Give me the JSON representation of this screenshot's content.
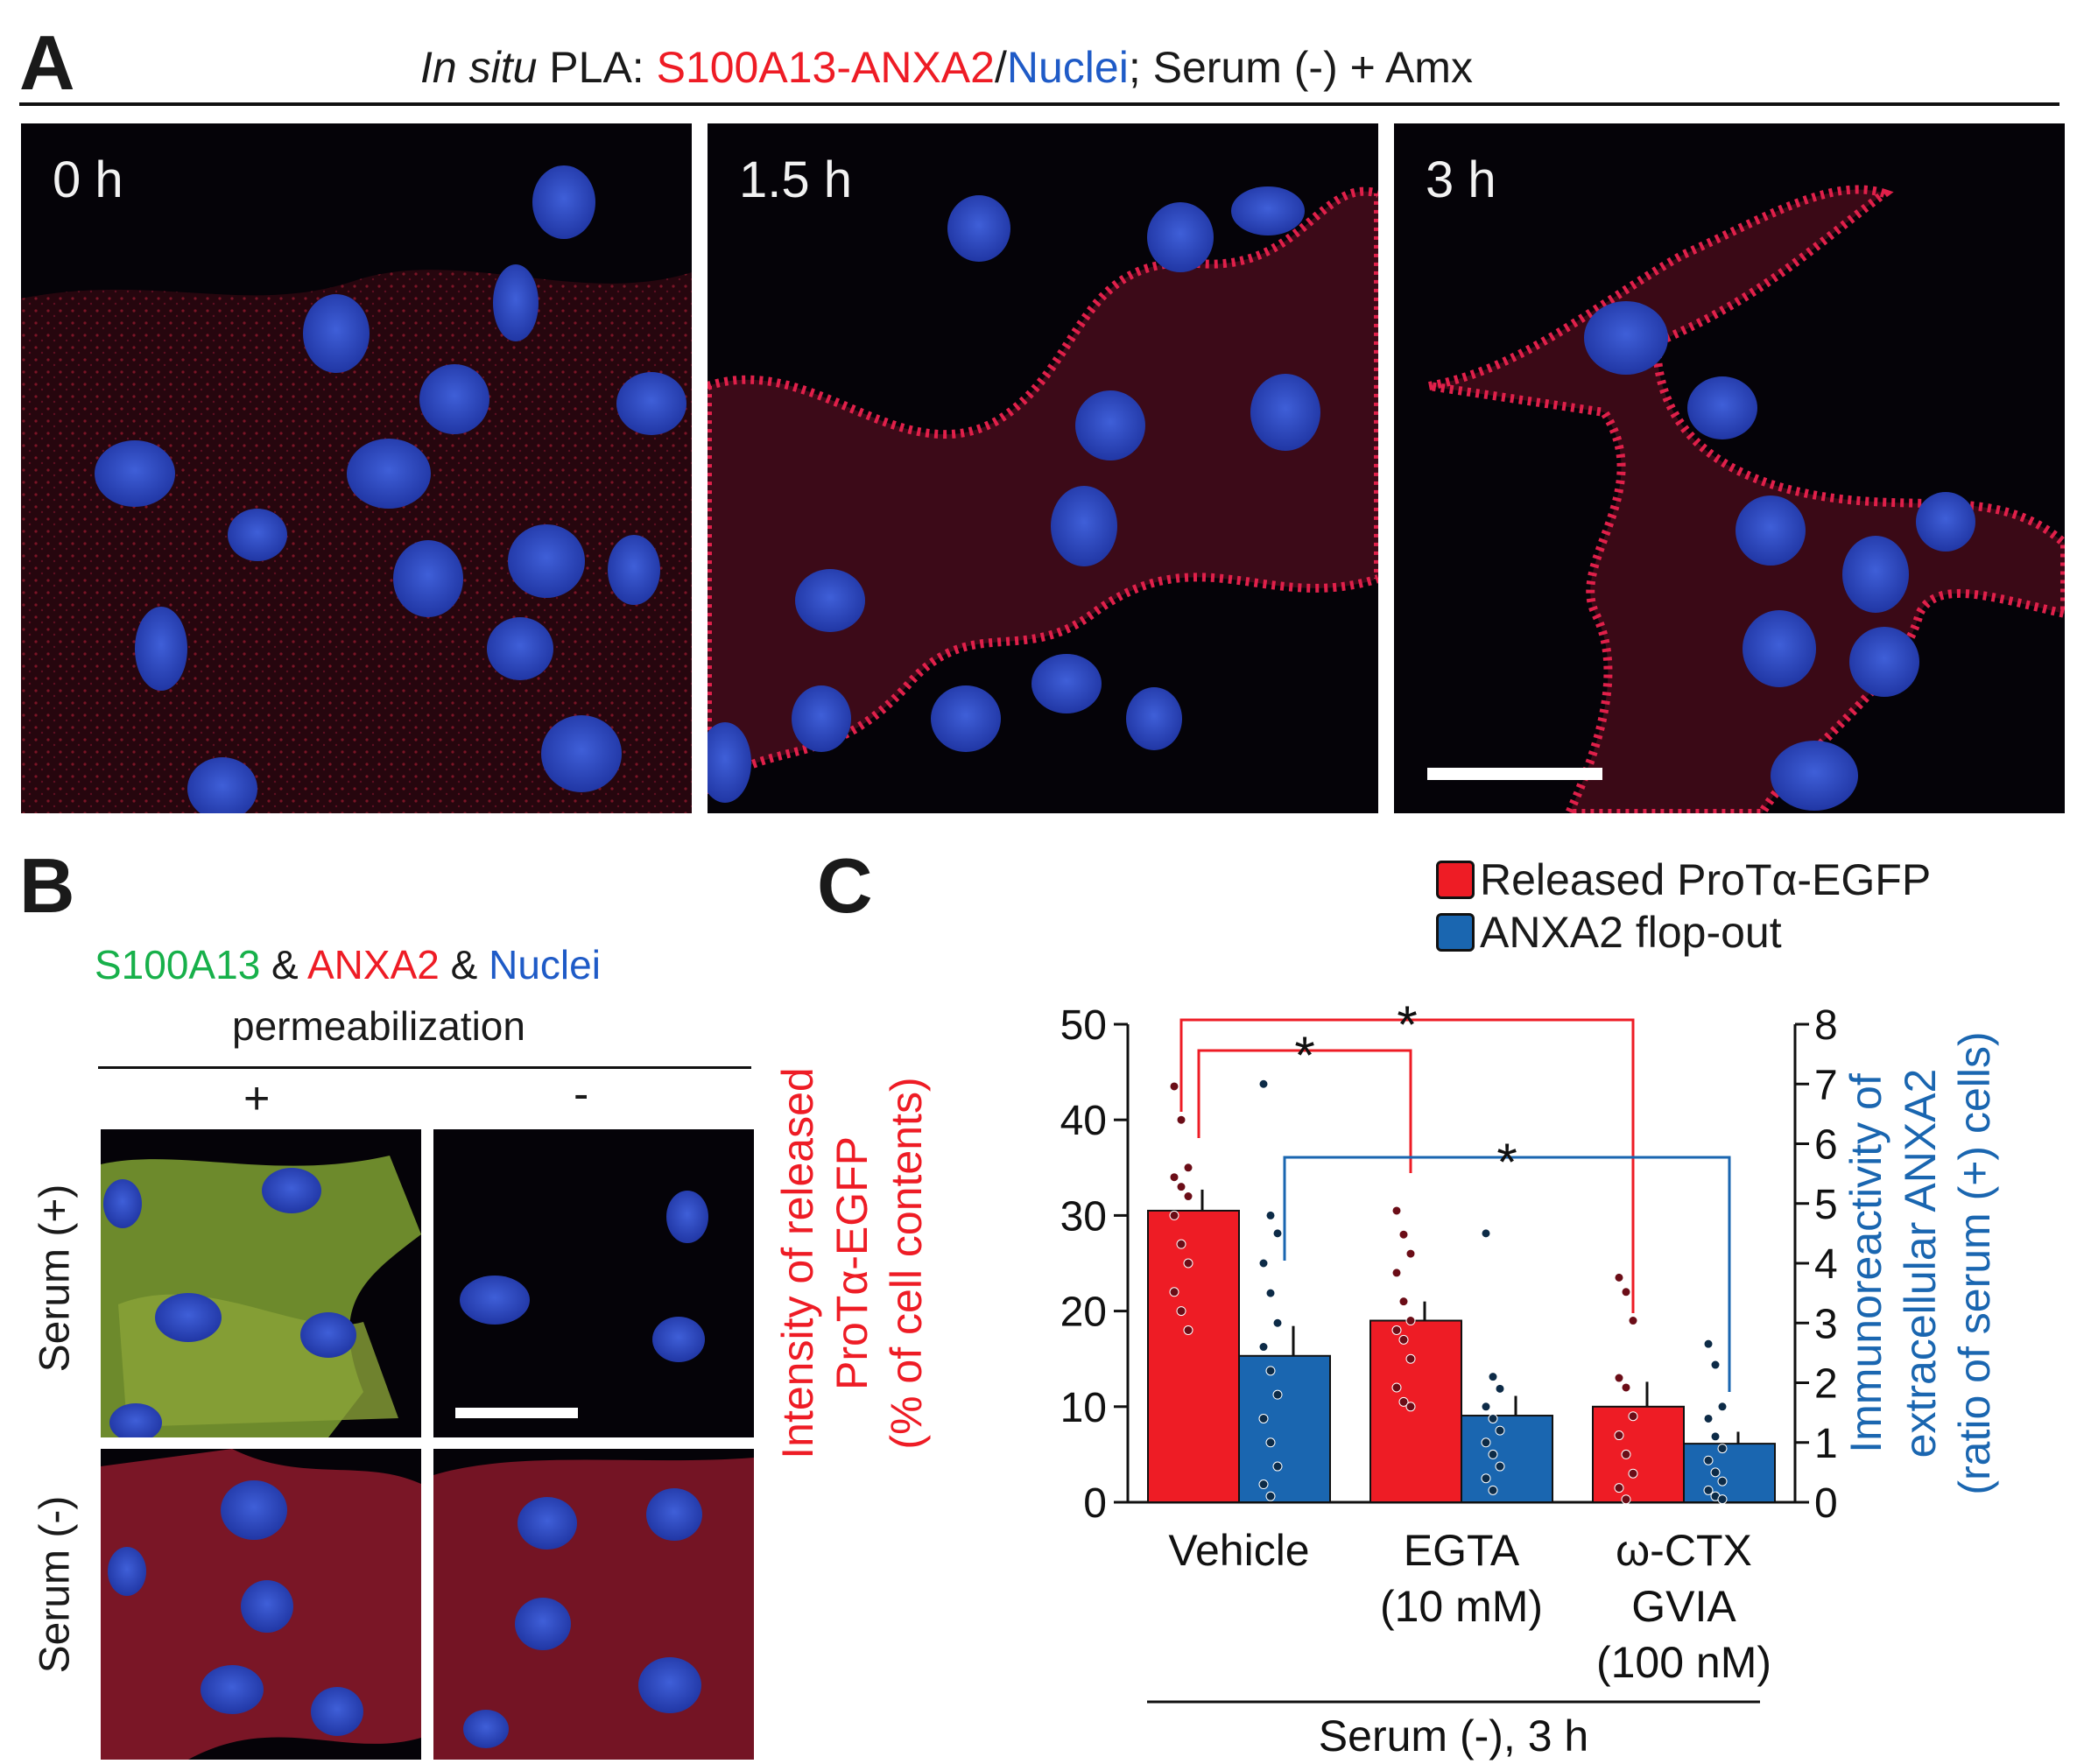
{
  "panel_a": {
    "letter": "A",
    "title": {
      "italic": "In situ",
      "pla": " PLA: ",
      "s100": "S100A13",
      "dash": "-",
      "anxa2": "ANXA2",
      "slash": "/",
      "nuclei": "Nuclei",
      "rest": "; Serum (-) + Amx"
    },
    "images": [
      "0 h",
      "1.5 h",
      "3 h"
    ]
  },
  "panel_b": {
    "letter": "B",
    "legend": {
      "s100": "S100A13",
      "amp1": " & ",
      "anxa2": "ANXA2",
      "amp2": " & ",
      "nuclei": "Nuclei"
    },
    "subtitle": "permeabilization",
    "columns": [
      "+",
      "-"
    ],
    "rows": [
      "Serum (+)",
      "Serum (-)"
    ]
  },
  "panel_c": {
    "letter": "C",
    "footer": "Serum (-), 3 h",
    "significance_mark": "*",
    "colors": {
      "released": "#ee1c25",
      "flop": "#1a66b0"
    }
  },
  "chart_data": {
    "type": "bar",
    "categories": [
      "Vehicle",
      "EGTA\n(10 mM)",
      "ω-CTX\nGVIA\n(100 nM)"
    ],
    "category_lines": [
      [
        "Vehicle"
      ],
      [
        "EGTA",
        "(10 mM)"
      ],
      [
        "ω-CTX",
        "GVIA",
        "(100 nM)"
      ]
    ],
    "series": [
      {
        "name": "Released ProTα-EGFP",
        "axis": "left",
        "color": "#ee1c25",
        "values": [
          30.5,
          19,
          10
        ],
        "errors": [
          2.2,
          2.0,
          2.6
        ],
        "points": [
          [
            43.5,
            40,
            35,
            34,
            33,
            32,
            30,
            27,
            25,
            22,
            20,
            18
          ],
          [
            30.5,
            28,
            26,
            24,
            21,
            19,
            18,
            17,
            15,
            12,
            10.5,
            10
          ],
          [
            23.5,
            22,
            19,
            13,
            12,
            9,
            7,
            5,
            3,
            1.5,
            0.3
          ]
        ]
      },
      {
        "name": "ANXA2 flop-out",
        "axis": "right",
        "color": "#1a66b0",
        "values": [
          2.45,
          1.45,
          0.98
        ],
        "errors": [
          0.5,
          0.33,
          0.2
        ],
        "points": [
          [
            7.0,
            4.8,
            4.5,
            4.0,
            3.5,
            3.0,
            2.6,
            2.2,
            1.8,
            1.4,
            1.0,
            0.6,
            0.3,
            0.1
          ],
          [
            4.5,
            2.1,
            1.9,
            1.6,
            1.4,
            1.2,
            1.0,
            0.8,
            0.6,
            0.4,
            0.2
          ],
          [
            2.65,
            2.3,
            1.6,
            1.4,
            1.1,
            0.9,
            0.7,
            0.5,
            0.35,
            0.2,
            0.1,
            0.05
          ]
        ]
      }
    ],
    "ylabel_left": [
      "Intensity of released",
      "ProTα-EGFP",
      "(% of cell contents)"
    ],
    "ylabel_right": [
      "Immunoreactivity of",
      "extracellular ANXA2",
      "(ratio of serum (+) cells)"
    ],
    "ylim_left": [
      0,
      50
    ],
    "yticks_left": [
      0,
      10,
      20,
      30,
      40,
      50
    ],
    "ylim_right": [
      0,
      8
    ],
    "yticks_right": [
      0,
      1,
      2,
      3,
      4,
      5,
      6,
      7,
      8
    ],
    "legend_position": "top-right",
    "significance": [
      {
        "series": "Released ProTα-EGFP",
        "from": "Vehicle",
        "to": "EGTA\n(10 mM)",
        "label": "*"
      },
      {
        "series": "Released ProTα-EGFP",
        "from": "Vehicle",
        "to": "ω-CTX\nGVIA\n(100 nM)",
        "label": "*"
      },
      {
        "series": "ANXA2 flop-out",
        "from": "Vehicle",
        "to": "ω-CTX\nGVIA\n(100 nM)",
        "label": "*"
      }
    ],
    "grid": false
  }
}
